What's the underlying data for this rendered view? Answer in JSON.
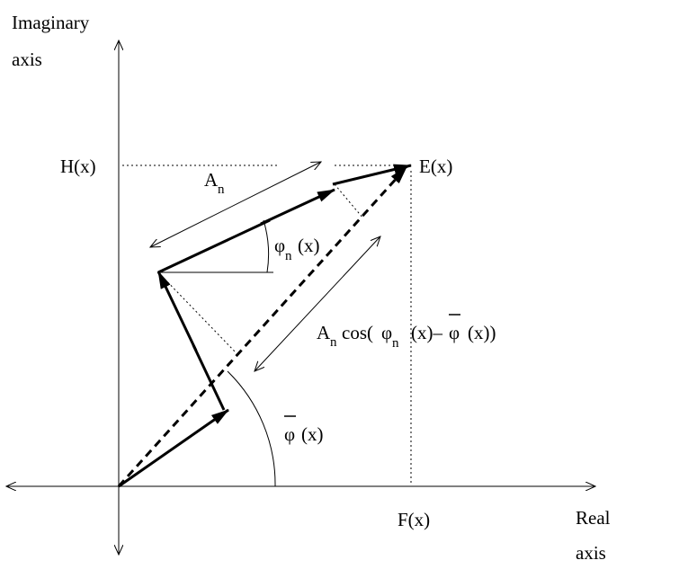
{
  "axes": {
    "y_label_line1": "Imaginary",
    "y_label_line2": "axis",
    "x_label_line1": "Real",
    "x_label_line2": "axis"
  },
  "points": {
    "h_label": "H(x)",
    "e_label": "E(x)",
    "f_label": "F(x)"
  },
  "amplitude": {
    "base": "A",
    "sub": "n"
  },
  "phase_n": {
    "base": "φ",
    "sub": "n",
    "arg": "(x)"
  },
  "mean_phase": {
    "base": "φ",
    "arg": "(x)"
  },
  "projection": {
    "base": "A",
    "sub": "n",
    "cos": "cos(",
    "phi": "φ",
    "phi_sub": "n",
    "mid": "(x)–",
    "phibar": "φ",
    "end": "(x))"
  }
}
